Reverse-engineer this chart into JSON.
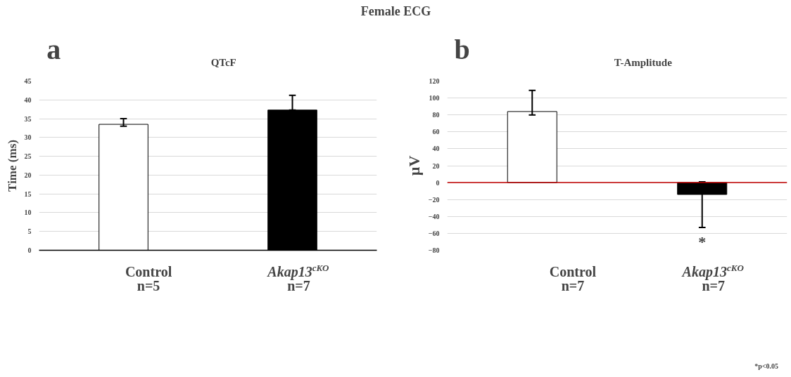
{
  "chart_data": [
    {
      "type": "bar",
      "title": "QTcF",
      "ylabel": "Time (ms)",
      "categories": [
        "Control\nn=5",
        "Akap13$^{cKO}$\nn=7"
      ],
      "values": [
        33.5,
        37.3
      ],
      "colors": [
        "#ffffff",
        "#000000"
      ],
      "errors": [
        [
          33,
          35
        ],
        [
          37.3,
          41.2
        ]
      ],
      "ylim": [
        0,
        45
      ],
      "yticks": [
        0,
        5,
        10,
        15,
        20,
        25,
        30,
        35,
        40,
        45
      ],
      "grid": "y",
      "annotations": [
        "Female ECG",
        "a"
      ]
    },
    {
      "type": "bar",
      "title": "T-Amplitude",
      "ylabel": "µV",
      "categories": [
        "Control\nn=7",
        "Akap13$^{cKO}$\nn=7"
      ],
      "values": [
        84,
        -14
      ],
      "colors": [
        "#ffffff",
        "#000000"
      ],
      "errors": [
        [
          80,
          109
        ],
        [
          -53,
          1
        ]
      ],
      "ylim": [
        -80,
        120
      ],
      "yticks": [
        -80,
        -60,
        -40,
        -20,
        0,
        20,
        40,
        60,
        80,
        100,
        120
      ],
      "grid": "y",
      "ref_lines": [
        {
          "axis": "y",
          "value": 0,
          "color": "#c00000"
        }
      ],
      "annotations": [
        "b",
        "*",
        "*p<0.05"
      ]
    }
  ]
}
